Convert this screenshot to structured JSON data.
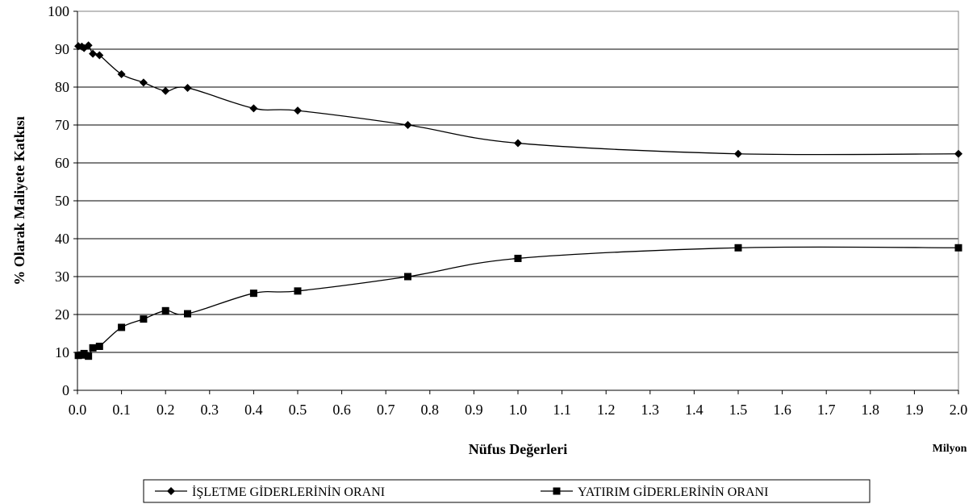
{
  "chart_data": {
    "type": "line",
    "title": "",
    "xlabel": "Nüfus Değerleri",
    "x_unit": "Milyon",
    "ylabel": "% Olarak Maliyete Katkısı",
    "xlim": [
      0,
      2.0
    ],
    "ylim": [
      0,
      100
    ],
    "x_ticks": [
      "0.0",
      "0.1",
      "0.2",
      "0.3",
      "0.4",
      "0.5",
      "0.6",
      "0.7",
      "0.8",
      "0.9",
      "1.0",
      "1.1",
      "1.2",
      "1.3",
      "1.4",
      "1.5",
      "1.6",
      "1.7",
      "1.8",
      "1.9",
      "2.0"
    ],
    "y_ticks": [
      "0",
      "10",
      "20",
      "30",
      "40",
      "50",
      "60",
      "70",
      "80",
      "90",
      "100"
    ],
    "grid": "horizontal",
    "legend_position": "bottom",
    "series": [
      {
        "name": "İŞLETME GİDERLERİNİN ORANI",
        "marker": "diamond",
        "color": "#000000",
        "x": [
          0.002,
          0.01,
          0.015,
          0.025,
          0.035,
          0.05,
          0.1,
          0.15,
          0.2,
          0.25,
          0.4,
          0.5,
          0.75,
          1.0,
          1.5,
          2.0
        ],
        "y": [
          90.8,
          90.7,
          90.3,
          91.0,
          88.8,
          88.4,
          83.4,
          81.2,
          79.0,
          79.8,
          74.4,
          73.8,
          70.0,
          65.2,
          62.4,
          62.4
        ]
      },
      {
        "name": "YATIRIM GİDERLERİNİN ORANI",
        "marker": "square",
        "color": "#000000",
        "x": [
          0.002,
          0.01,
          0.015,
          0.025,
          0.035,
          0.05,
          0.1,
          0.15,
          0.2,
          0.25,
          0.4,
          0.5,
          0.75,
          1.0,
          1.5,
          2.0
        ],
        "y": [
          9.2,
          9.3,
          9.7,
          9.0,
          11.2,
          11.6,
          16.6,
          18.8,
          21.0,
          20.2,
          25.6,
          26.2,
          30.0,
          34.8,
          37.6,
          37.6
        ]
      }
    ]
  }
}
